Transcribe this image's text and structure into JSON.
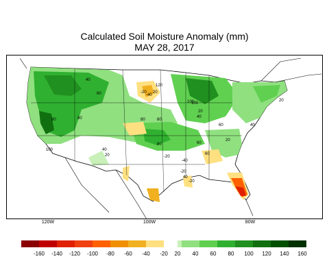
{
  "map": {
    "title": "Calculated Soil Moisture Anomaly (mm)",
    "date": "MAY 28, 2017",
    "longitude_labels": [
      "120W",
      "100W",
      "80W"
    ],
    "contour_labels": [
      "40",
      "60",
      "80",
      "100",
      "120",
      "20",
      "-20",
      "-40",
      "100",
      "60",
      "80",
      "20",
      "40",
      "100",
      "80",
      "40",
      "60",
      "20",
      "-20",
      "-40",
      "-20",
      "40",
      "60",
      "20",
      "-20",
      "80",
      "60",
      "40",
      "20"
    ]
  },
  "legend": {
    "labels": [
      "-160",
      "-140",
      "-120",
      "-100",
      "-80",
      "-60",
      "-40",
      "-20",
      "20",
      "40",
      "60",
      "80",
      "100",
      "120",
      "140",
      "160"
    ],
    "colors": [
      "#8b0000",
      "#c00000",
      "#e02000",
      "#f04010",
      "#ff6000",
      "#f09000",
      "#f0b020",
      "#ffe080",
      "#c8f0b8",
      "#90e080",
      "#60d050",
      "#30b030",
      "#209020",
      "#107010",
      "#005000",
      "#003000"
    ]
  }
}
